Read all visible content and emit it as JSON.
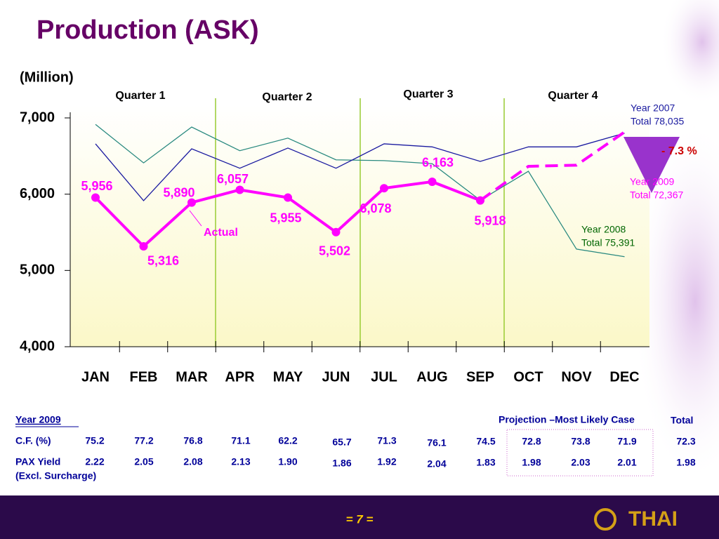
{
  "chart_data": {
    "type": "line",
    "title": "Production (ASK)",
    "unit_label": "(Million)",
    "quarters": [
      "Quarter 1",
      "Quarter 2",
      "Quarter 3",
      "Quarter 4"
    ],
    "categories": [
      "JAN",
      "FEB",
      "MAR",
      "APR",
      "MAY",
      "JUN",
      "JUL",
      "AUG",
      "SEP",
      "OCT",
      "NOV",
      "DEC"
    ],
    "ylim": [
      4000,
      7000
    ],
    "yticks": [
      {
        "value": 4000,
        "label": "4,000"
      },
      {
        "value": 5000,
        "label": "5,000"
      },
      {
        "value": 6000,
        "label": "6,000"
      },
      {
        "value": 7000,
        "label": "7,000"
      }
    ],
    "series": [
      {
        "name": "Year 2009",
        "total": "Total 72,367",
        "color": "#ff00ff",
        "values": [
          5956,
          5316,
          5890,
          6057,
          5955,
          5502,
          6078,
          6163,
          5918,
          null,
          null,
          null
        ],
        "value_labels": [
          "5,956",
          "5,316",
          "5,890",
          "6,057",
          "5,955",
          "5,502",
          "6,078",
          "6,163",
          "5,918",
          null,
          null,
          null
        ]
      },
      {
        "name": "Projection –Most Likely Case",
        "color": "#ff00ff",
        "dashed": true,
        "values": [
          null,
          null,
          null,
          null,
          null,
          null,
          null,
          null,
          5918,
          6365,
          6380,
          6815
        ]
      },
      {
        "name": "Year 2007",
        "total": "Total 78,035",
        "color": "#1a1aa0",
        "values": [
          6660,
          5915,
          6595,
          6340,
          6605,
          6340,
          6660,
          6620,
          6430,
          6620,
          6620,
          6800
        ]
      },
      {
        "name": "Year 2008",
        "total": "Total 75,391",
        "color": "#2a8a80",
        "values": [
          6915,
          6410,
          6880,
          6570,
          6735,
          6450,
          6440,
          6400,
          5920,
          6300,
          5280,
          5180
        ]
      }
    ],
    "annotations": {
      "actual": "Actual",
      "change": "- 7.3 %"
    }
  },
  "table": {
    "title": "Year 2009",
    "projection_header": "Projection –Most Likely Case",
    "total_header": "Total",
    "rows": [
      {
        "label": "C.F. (%)",
        "values": [
          "75.2",
          "77.2",
          "76.8",
          "71.1",
          "62.2",
          "65.7",
          "71.3",
          "76.1",
          "74.5",
          "72.8",
          "73.8",
          "71.9",
          "72.3"
        ]
      },
      {
        "label": "PAX Yield",
        "sublabel": "(Excl. Surcharge)",
        "values": [
          "2.22",
          "2.05",
          "2.08",
          "2.13",
          "1.90",
          "1.86",
          "1.92",
          "2.04",
          "1.83",
          "1.98",
          "2.03",
          "2.01",
          "1.98"
        ]
      }
    ]
  },
  "footer": {
    "page": "= 7 =",
    "logo": "THAI"
  }
}
